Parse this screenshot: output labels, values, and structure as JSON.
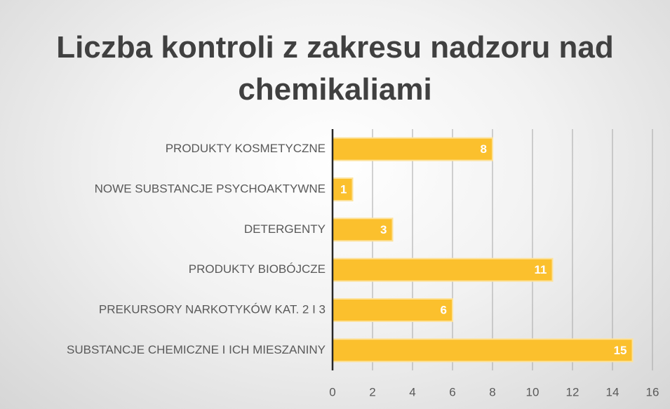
{
  "chart_data": {
    "type": "bar",
    "orientation": "horizontal",
    "title": "Liczba kontroli z zakresu nadzoru nad chemikaliami",
    "categories": [
      "PRODUKTY KOSMETYCZNE",
      "NOWE SUBSTANCJE PSYCHOAKTYWNE",
      "DETERGENTY",
      "PRODUKTY BIOBÓJCZE",
      "PREKURSORY NARKOTYKÓW KAT. 2 I 3",
      "SUBSTANCJE CHEMICZNE I ICH MIESZANINY"
    ],
    "values": [
      8,
      1,
      3,
      11,
      6,
      15
    ],
    "color": "#fbc02d",
    "xlim": [
      0,
      16
    ],
    "xticks": [
      0,
      2,
      4,
      6,
      8,
      10,
      12,
      14,
      16
    ],
    "grid": true
  }
}
